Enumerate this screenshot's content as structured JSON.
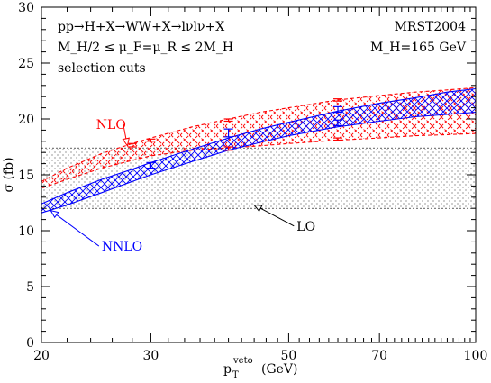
{
  "chart_data": {
    "type": "area",
    "xlabel": "p",
    "xlabel_sup": "veto",
    "xlabel_sub": "T",
    "xlabel_unit": "(GeV)",
    "ylabel": "σ (fb)",
    "xlim": [
      20,
      100
    ],
    "ylim": [
      0,
      30
    ],
    "x_scale": "log",
    "x_ticks": [
      20,
      30,
      50,
      70,
      100
    ],
    "y_ticks": [
      0,
      5,
      10,
      15,
      20,
      25,
      30
    ],
    "annotations": {
      "process": "pp→H+X→WW+X→lνlν+X",
      "scale": "M_H/2 ≤ μ_F=μ_R ≤ 2M_H",
      "cuts": "selection cuts",
      "pdf": "MRST2004",
      "mass": "M_H=165 GeV"
    },
    "series": [
      {
        "name": "LO",
        "color": "#000000",
        "hatch": "dots",
        "x": [
          20,
          100
        ],
        "upper": [
          17.4,
          17.4
        ],
        "lower": [
          12.0,
          12.0
        ]
      },
      {
        "name": "NLO",
        "color": "#ff0000",
        "hatch": "dashed-cross",
        "x": [
          20,
          22,
          25,
          28,
          30,
          35,
          40,
          45,
          50,
          60,
          70,
          80,
          90,
          100
        ],
        "upper": [
          14.4,
          15.6,
          16.9,
          17.8,
          18.3,
          19.3,
          20.0,
          20.6,
          21.0,
          21.7,
          22.1,
          22.4,
          22.6,
          22.8
        ],
        "lower": [
          13.8,
          14.6,
          15.6,
          16.3,
          16.7,
          17.2,
          17.4,
          17.6,
          17.8,
          18.1,
          18.3,
          18.5,
          18.6,
          18.7
        ]
      },
      {
        "name": "NNLO",
        "color": "#0000ff",
        "hatch": "cross",
        "x": [
          20,
          22,
          25,
          28,
          30,
          35,
          40,
          45,
          50,
          60,
          70,
          80,
          90,
          100
        ],
        "upper": [
          12.4,
          13.4,
          14.6,
          15.5,
          16.1,
          17.3,
          18.3,
          19.1,
          19.7,
          20.7,
          21.4,
          21.9,
          22.4,
          22.7
        ],
        "lower": [
          11.6,
          12.3,
          13.4,
          14.4,
          15.0,
          16.2,
          17.2,
          17.9,
          18.5,
          19.3,
          19.8,
          20.2,
          20.4,
          20.6
        ]
      }
    ],
    "error_bars": [
      {
        "series": "NLO",
        "x": 28,
        "lo": 17.5,
        "hi": 17.8
      },
      {
        "series": "NLO",
        "x": 30,
        "lo": 18.0,
        "hi": 18.2
      },
      {
        "series": "NLO",
        "x": 40,
        "lo": 19.8,
        "hi": 20.0
      },
      {
        "series": "NLO",
        "x": 60,
        "lo": 21.6,
        "hi": 21.8
      },
      {
        "series": "NLO",
        "x": 60,
        "lo": 18.1,
        "hi": 18.3
      },
      {
        "series": "NLO",
        "x": 40,
        "lo": 17.2,
        "hi": 17.5
      },
      {
        "series": "NNLO",
        "x": 30,
        "lo": 15.6,
        "hi": 16.1
      },
      {
        "series": "NNLO",
        "x": 40,
        "lo": 18.4,
        "hi": 19.1
      },
      {
        "series": "NNLO",
        "x": 60,
        "lo": 20.6,
        "hi": 21.1
      },
      {
        "series": "NNLO",
        "x": 60,
        "lo": 19.4,
        "hi": 19.9
      }
    ],
    "labels": [
      {
        "text": "NLO",
        "color": "#ff0000",
        "x": 24.5,
        "y": 19.2,
        "to_x": 27.5,
        "to_y": 17.6
      },
      {
        "text": "NNLO",
        "color": "#0000ff",
        "x": 25.0,
        "y": 8.3,
        "to_x": 20.7,
        "to_y": 11.8
      },
      {
        "text": "LO",
        "color": "#000000",
        "x": 51.5,
        "y": 10.1,
        "to_x": 44.0,
        "to_y": 12.3
      }
    ]
  }
}
